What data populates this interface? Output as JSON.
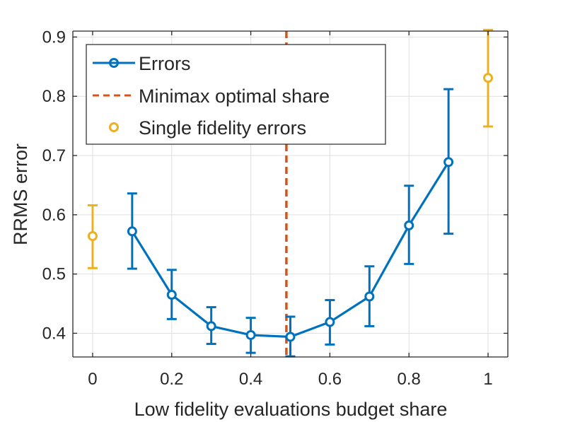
{
  "chart_data": {
    "type": "line",
    "xlabel": "Low fidelity evaluations budget share",
    "ylabel": "RRMS error",
    "xlim": [
      -0.05,
      1.05
    ],
    "ylim": [
      0.36,
      0.91
    ],
    "xticks": [
      0,
      0.2,
      0.4,
      0.6,
      0.8,
      1
    ],
    "xtick_labels": [
      "0",
      "0.2",
      "0.4",
      "0.6",
      "0.8",
      "1"
    ],
    "yticks": [
      0.4,
      0.5,
      0.6,
      0.7,
      0.8,
      0.9
    ],
    "ytick_labels": [
      "0.4",
      "0.5",
      "0.6",
      "0.7",
      "0.8",
      "0.9"
    ],
    "grid": true,
    "legend_position": "top-left",
    "series": [
      {
        "name": "Errors",
        "color": "#0072BD",
        "style": "line-with-circle-markers-and-error-bars",
        "x": [
          0.1,
          0.2,
          0.3,
          0.4,
          0.5,
          0.6,
          0.7,
          0.8,
          0.9
        ],
        "y": [
          0.572,
          0.465,
          0.412,
          0.397,
          0.394,
          0.419,
          0.462,
          0.582,
          0.689
        ],
        "y_lower": [
          0.509,
          0.424,
          0.382,
          0.367,
          0.361,
          0.381,
          0.412,
          0.517,
          0.568
        ],
        "y_upper": [
          0.636,
          0.507,
          0.444,
          0.426,
          0.428,
          0.456,
          0.513,
          0.649,
          0.812
        ]
      },
      {
        "name": "Minimax optimal share",
        "color": "#D95319",
        "style": "dashed-vertical-line",
        "x_value": 0.49
      },
      {
        "name": "Single fidelity errors",
        "color": "#EDB120",
        "style": "circle-markers-with-error-bars",
        "x": [
          0,
          1
        ],
        "y": [
          0.564,
          0.831
        ],
        "y_lower": [
          0.51,
          0.749
        ],
        "y_upper": [
          0.616,
          0.912
        ]
      }
    ]
  }
}
